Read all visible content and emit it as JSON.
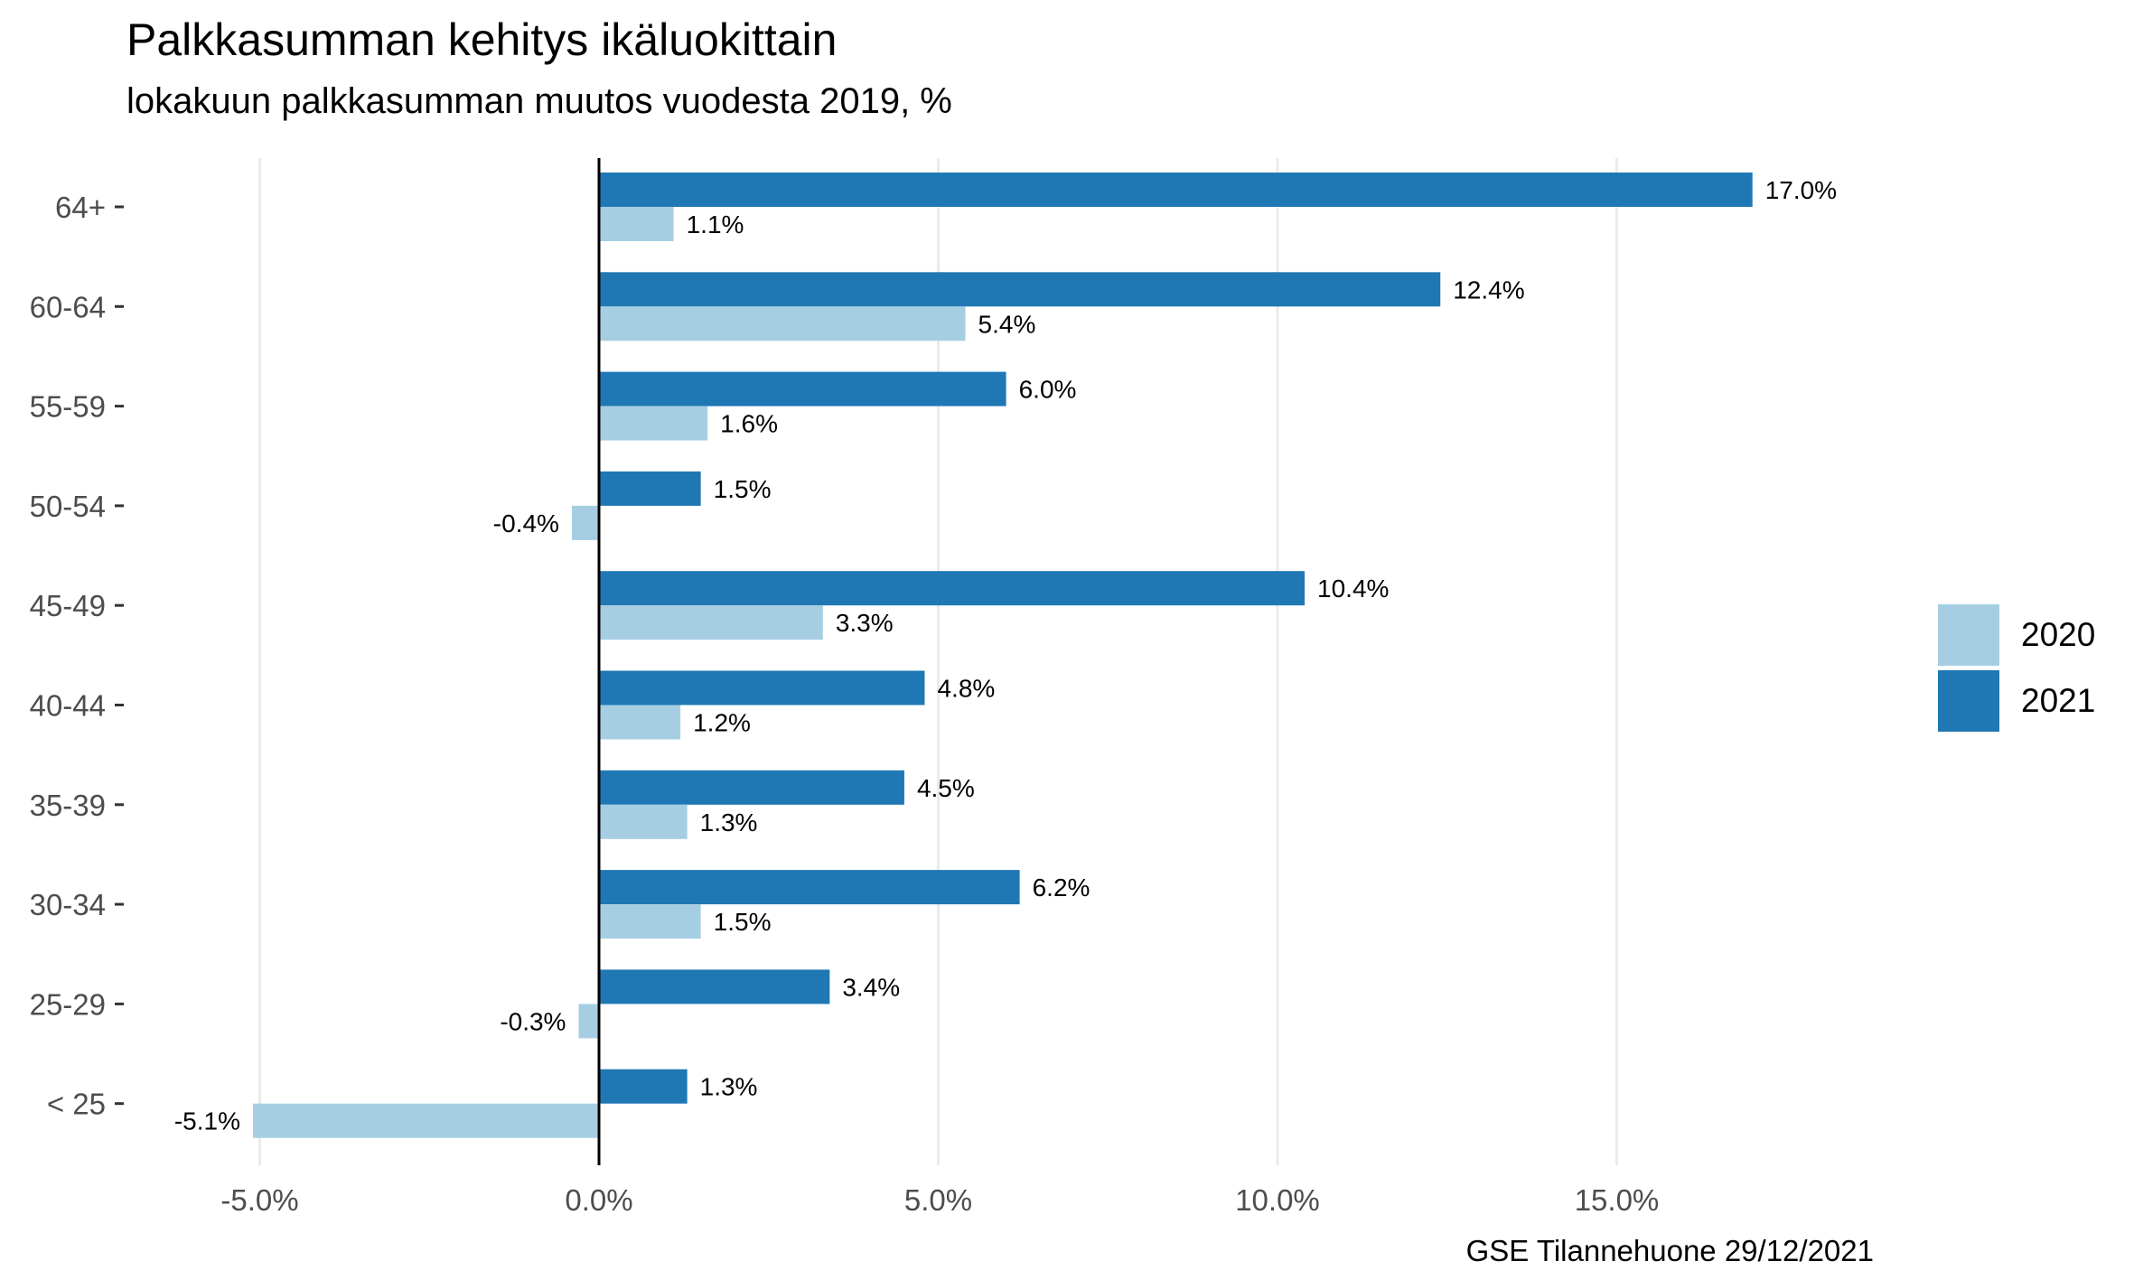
{
  "chart_data": {
    "type": "bar",
    "orientation": "horizontal",
    "title": "Palkkasumman kehitys ikäluokittain",
    "subtitle": "lokakuun palkkasumman muutos vuodesta 2019, %",
    "caption": "GSE Tilannehuone 29/12/2021",
    "categories": [
      "64+",
      "60-64",
      "55-59",
      "50-54",
      "45-49",
      "40-44",
      "35-39",
      "30-34",
      "25-29",
      "< 25"
    ],
    "series": [
      {
        "name": "2020",
        "color": "#a6cee3",
        "values": [
          1.1,
          5.4,
          1.6,
          -0.4,
          3.3,
          1.2,
          1.3,
          1.5,
          -0.3,
          -5.1
        ],
        "labels": [
          "1.1%",
          "5.4%",
          "1.6%",
          "-0.4%",
          "3.3%",
          "1.2%",
          "1.3%",
          "1.5%",
          "-0.3%",
          "-5.1%"
        ]
      },
      {
        "name": "2021",
        "color": "#1f78b4",
        "values": [
          17.0,
          12.4,
          6.0,
          1.5,
          10.4,
          4.8,
          4.5,
          6.2,
          3.4,
          1.3
        ],
        "labels": [
          "17.0%",
          "12.4%",
          "6.0%",
          "1.5%",
          "10.4%",
          "4.8%",
          "4.5%",
          "6.2%",
          "3.4%",
          "1.3%"
        ]
      }
    ],
    "x_ticks": [
      -5,
      0,
      5,
      10,
      15
    ],
    "x_tick_labels": [
      "-5.0%",
      "0.0%",
      "5.0%",
      "10.0%",
      "15.0%"
    ],
    "xlim": [
      -6.2,
      18.2
    ],
    "grid": "vertical major",
    "zero_line": true,
    "legend_position": "right",
    "colors": {
      "grid": "#ebebeb",
      "zero_line": "#000000",
      "tick_text": "#4d4d4d"
    }
  }
}
